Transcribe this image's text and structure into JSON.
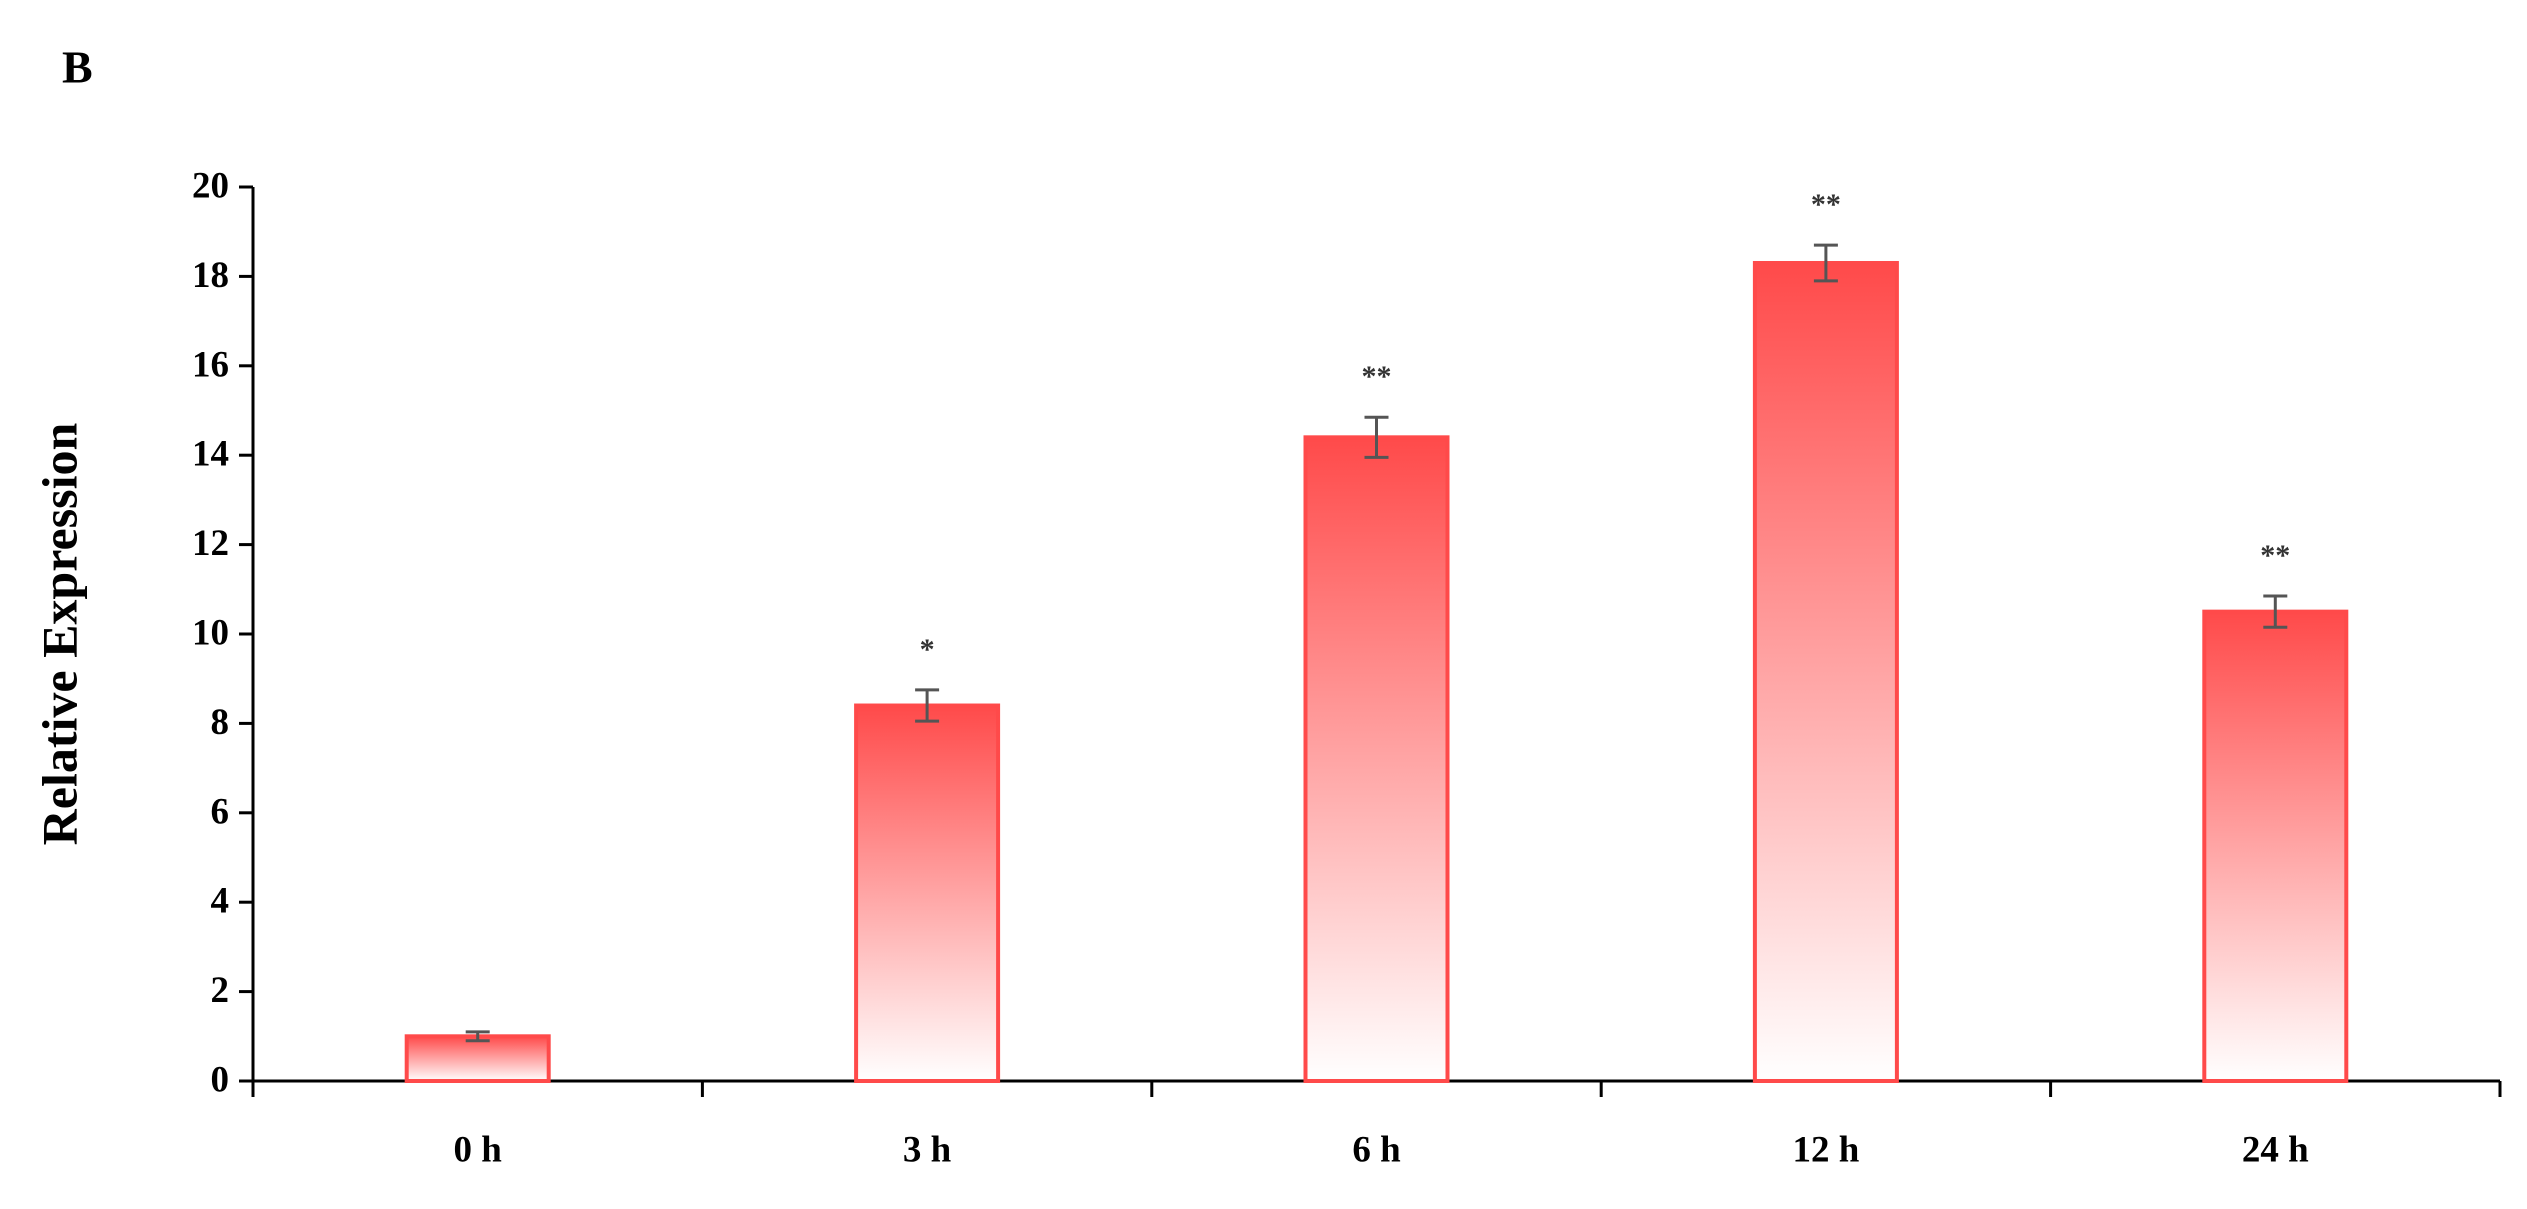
{
  "chart_data": {
    "type": "bar",
    "panel_label": "B",
    "ylabel": "Relative Expression",
    "categories": [
      "0 h",
      "3 h",
      "6 h",
      "12 h",
      "24 h"
    ],
    "values": [
      1.0,
      8.4,
      14.4,
      18.3,
      10.5
    ],
    "errors": [
      0.1,
      0.35,
      0.45,
      0.4,
      0.35
    ],
    "annotations": [
      null,
      "*",
      "**",
      "**",
      "**"
    ],
    "color": "#ff4a4a",
    "error_color": "#555555",
    "ylim": [
      0,
      20
    ],
    "yticks": [
      0,
      2,
      4,
      6,
      8,
      10,
      12,
      14,
      16,
      18,
      20
    ],
    "grid": false
  }
}
